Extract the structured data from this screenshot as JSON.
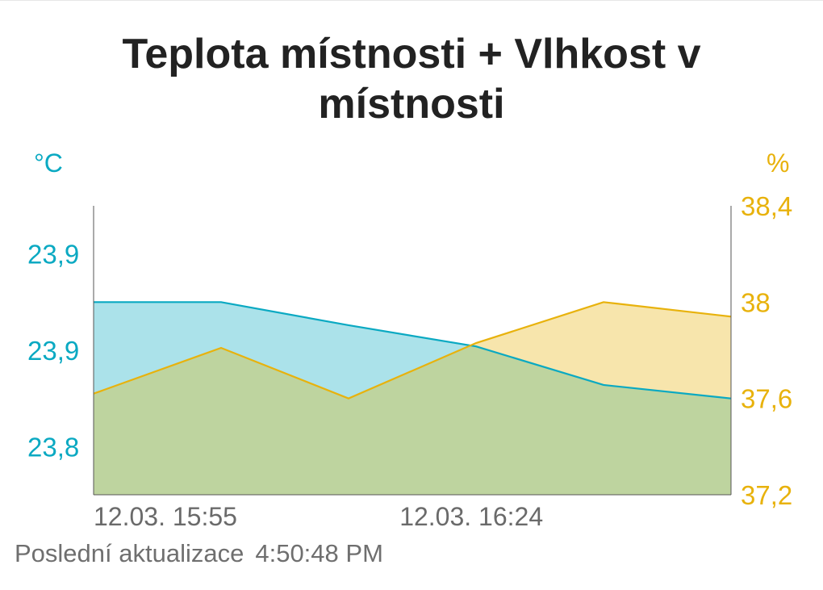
{
  "title": "Teplota místnosti + Vlhkost v místnosti",
  "footer": {
    "label": "Poslední aktualizace",
    "time": "4:50:48 PM"
  },
  "colors": {
    "temperature": "#0aa9c2",
    "humidity": "#e8b20c",
    "overlap": "#bed49f",
    "axis": "#555555",
    "xtick": "#6a6a6a"
  },
  "chart_data": {
    "type": "area",
    "title": "Teplota místnosti + Vlhkost v místnosti",
    "x_tick_labels": [
      "12.03. 15:55",
      "12.03. 16:24"
    ],
    "x": [
      0,
      1,
      2,
      3,
      4,
      5
    ],
    "series": [
      {
        "axis": "left",
        "unit": "°C",
        "ylim": [
          23.775,
          23.925
        ],
        "tick_values": [
          23.8,
          23.85,
          23.9
        ],
        "tick_labels": [
          "23,8",
          "23,9",
          "23,9"
        ],
        "values": [
          23.875,
          23.875,
          23.863,
          23.852,
          23.832,
          23.825
        ]
      },
      {
        "axis": "right",
        "unit": "%",
        "ylim": [
          37.2,
          38.4
        ],
        "tick_values": [
          37.2,
          37.6,
          38,
          38.4
        ],
        "tick_labels": [
          "37,2",
          "37,6",
          "38",
          "38,4"
        ],
        "values": [
          37.62,
          37.81,
          37.6,
          37.83,
          38.0,
          37.94
        ]
      }
    ],
    "grid": false,
    "legend": "none"
  }
}
